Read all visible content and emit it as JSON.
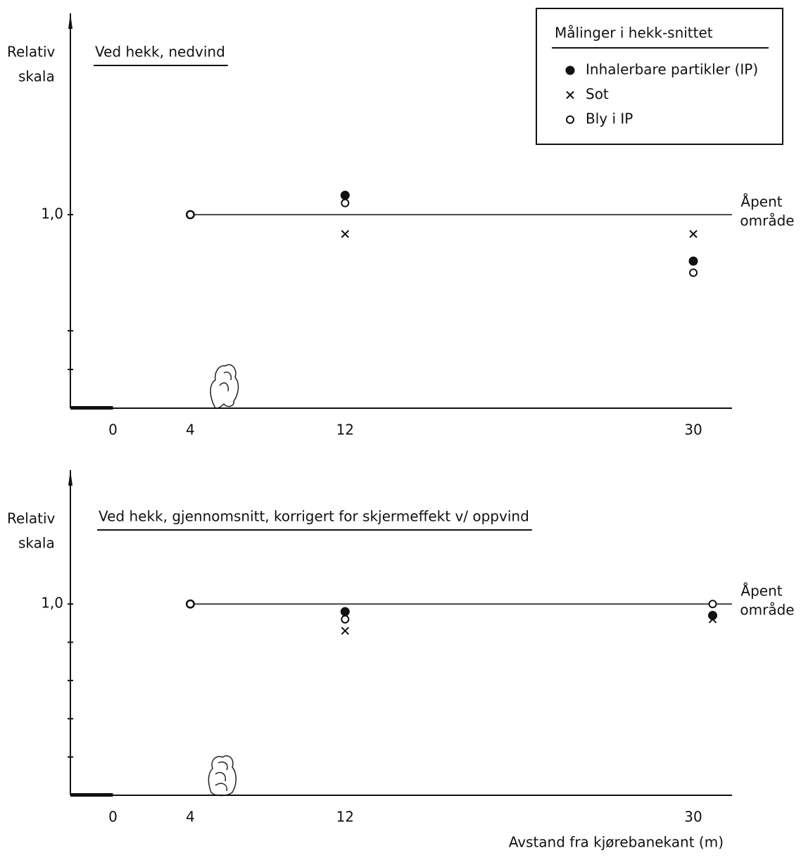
{
  "chart_data": [
    {
      "type": "scatter",
      "title": "Ved hekk, nedvind",
      "y_label": [
        "Relativ",
        "skala"
      ],
      "legend_title": "Målinger i hekk-snittet",
      "legend": "upper right",
      "reference_line": {
        "value": 1,
        "label": [
          "Åpent",
          "område"
        ]
      },
      "xlim": [
        -2.2,
        32
      ],
      "xticks": [
        0,
        4,
        12,
        30
      ],
      "ylim": [
        0.5,
        1.52
      ],
      "yticks": [
        {
          "value": 1,
          "label": "1,0"
        }
      ],
      "minor_yticks": [
        0.6,
        0.7
      ],
      "series": [
        {
          "name": "Inhalerbare partikler (IP)",
          "marker": "filled-circle",
          "color": "#111",
          "x": [
            4,
            12,
            30
          ],
          "values": [
            1.0,
            1.05,
            0.88
          ]
        },
        {
          "name": "Sot",
          "marker": "cross",
          "color": "#111",
          "x": [
            12,
            30
          ],
          "values": [
            0.95,
            0.95
          ]
        },
        {
          "name": "Bly i IP",
          "marker": "open-circle",
          "color": "#111",
          "x": [
            4,
            12,
            30
          ],
          "values": [
            1.0,
            1.03,
            0.85
          ]
        }
      ]
    },
    {
      "type": "scatter",
      "title": "Ved hekk, gjennomsnitt, korrigert for skjermeffekt v/ oppvind",
      "y_label": [
        "Relativ",
        "skala"
      ],
      "x_label": "Avstand fra kjørebanekant (m)",
      "reference_line": {
        "value": 1,
        "label": [
          "Åpent",
          "område"
        ]
      },
      "xlim": [
        -2.2,
        32
      ],
      "xticks": [
        0,
        4,
        12,
        30
      ],
      "ylim": [
        0.5,
        1.35
      ],
      "yticks": [
        {
          "value": 1,
          "label": "1,0"
        }
      ],
      "minor_yticks": [
        0.6,
        0.7,
        0.8,
        0.9
      ],
      "series": [
        {
          "name": "Inhalerbare partikler (IP)",
          "marker": "filled-circle",
          "color": "#111",
          "x": [
            4,
            12,
            31
          ],
          "values": [
            1.0,
            0.98,
            0.97
          ]
        },
        {
          "name": "Sot",
          "marker": "cross",
          "color": "#111",
          "x": [
            12,
            31
          ],
          "values": [
            0.93,
            0.96
          ]
        },
        {
          "name": "Bly i IP",
          "marker": "open-circle",
          "color": "#111",
          "x": [
            4,
            12,
            31
          ],
          "values": [
            1.0,
            0.96,
            1.0
          ]
        }
      ]
    }
  ]
}
